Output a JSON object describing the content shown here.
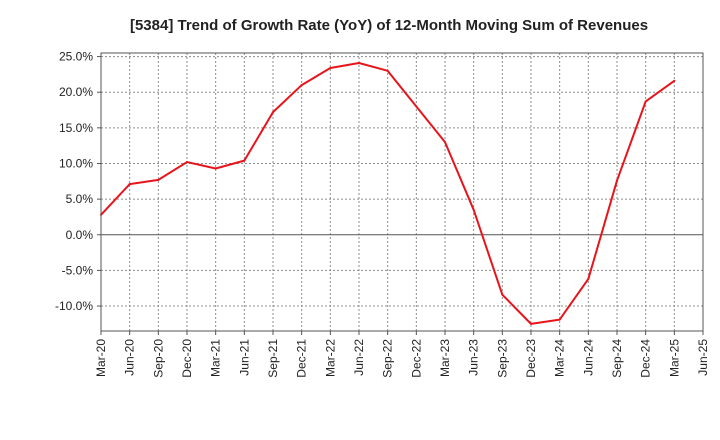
{
  "chart_data": {
    "type": "line",
    "title": "[5384]  Trend of Growth Rate (YoY) of 12-Month Moving Sum of Revenues",
    "xlabel": "",
    "ylabel": "",
    "ylim": [
      -13.5,
      25.5
    ],
    "y_ticks": [
      -10,
      -5,
      0,
      5,
      10,
      15,
      20,
      25
    ],
    "y_tick_labels": [
      "-10.0%",
      "-5.0%",
      "0.0%",
      "5.0%",
      "10.0%",
      "15.0%",
      "20.0%",
      "25.0%"
    ],
    "x_tick_labels": [
      "Mar-20",
      "Jun-20",
      "Sep-20",
      "Dec-20",
      "Mar-21",
      "Jun-21",
      "Sep-21",
      "Dec-21",
      "Mar-22",
      "Jun-22",
      "Sep-22",
      "Dec-22",
      "Mar-23",
      "Jun-23",
      "Sep-23",
      "Dec-23",
      "Mar-24",
      "Jun-24",
      "Sep-24",
      "Dec-24",
      "Mar-25",
      "Jun-25"
    ],
    "grid": true,
    "series": [
      {
        "color": "#e8141b",
        "values": [
          2.8,
          7.1,
          7.7,
          10.2,
          9.3,
          10.4,
          17.2,
          21.0,
          23.4,
          24.1,
          23.0,
          18.0,
          13.0,
          3.5,
          -8.4,
          -12.5,
          -11.9,
          -6.2,
          7.6,
          18.7,
          21.6
        ]
      }
    ]
  }
}
